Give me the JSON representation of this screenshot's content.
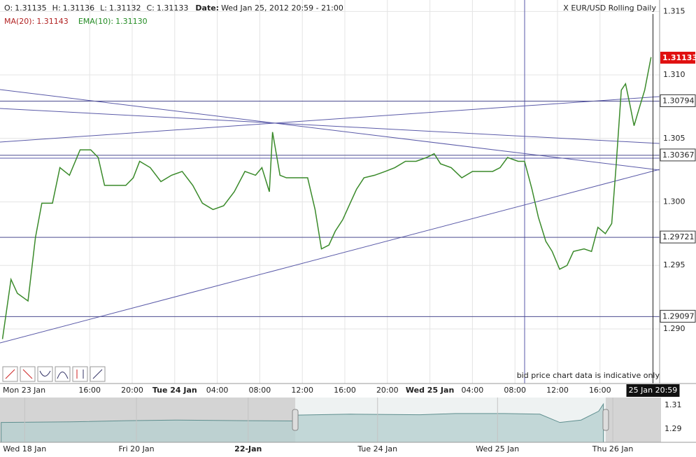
{
  "header": {
    "ohlc": [
      {
        "label": "O:",
        "value": "1.31135"
      },
      {
        "label": "H:",
        "value": "1.31136"
      },
      {
        "label": "L:",
        "value": "1.31132"
      },
      {
        "label": "C:",
        "value": "1.31133"
      }
    ],
    "date_label": "Date:",
    "date": "Wed Jan 25, 2012 20:59 - 21:00",
    "indicators": [
      {
        "label": "MA(20):",
        "value": "1.31143",
        "color": "#b22222"
      },
      {
        "label": "EMA(10):",
        "value": "1.31130",
        "color": "#228b22"
      }
    ]
  },
  "footer_note": "bid price chart data is indicative only",
  "chart_data": [
    {
      "type": "line",
      "title": "X EUR/USD Rolling Daily",
      "x_start_label": "Mon 23 Jan",
      "xlim": [
        7.566,
        69.605
      ],
      "ylim": [
        1.2857,
        1.3159
      ],
      "xticks": [
        {
          "value": 16,
          "label": "16:00"
        },
        {
          "value": 20,
          "label": "20:00"
        },
        {
          "value": 24,
          "label": "Tue 24 Jan"
        },
        {
          "value": 28,
          "label": "04:00"
        },
        {
          "value": 32,
          "label": "08:00"
        },
        {
          "value": 36,
          "label": "12:00"
        },
        {
          "value": 40,
          "label": "16:00"
        },
        {
          "value": 44,
          "label": "20:00"
        },
        {
          "value": 48,
          "label": "Wed 25 Jan"
        },
        {
          "value": 52,
          "label": "04:00"
        },
        {
          "value": 56,
          "label": "08:00"
        },
        {
          "value": 60,
          "label": "12:00"
        },
        {
          "value": 64,
          "label": "16:00"
        }
      ],
      "yticks": [
        {
          "value": 1.29,
          "label": "1.290"
        },
        1.295,
        {
          "value": 1.3,
          "label": "1.300"
        },
        1.305,
        {
          "value": 1.31,
          "label": "1.310"
        },
        1.315
      ],
      "grid": true,
      "cursor": {
        "value": 68.98,
        "label": "25 Jan 20:59"
      },
      "levels": [
        1.30794,
        1.30367,
        1.29721,
        1.29097
      ],
      "current_price": 1.31133,
      "series": [
        {
          "color": "#3a8a2a",
          "x": [
            7.8,
            8.6,
            9.2,
            10.2,
            10.9,
            11.5,
            12.5,
            13.2,
            14.1,
            15.1,
            16.1,
            16.8,
            17.4,
            18.4,
            19.4,
            20.1,
            20.7,
            21.7,
            22.7,
            23.7,
            24.7,
            25.7,
            26.6,
            27.6,
            28.6,
            29.6,
            30.6,
            31.6,
            32.2,
            32.9,
            33.2,
            33.9,
            34.5,
            35.5,
            36.5,
            37.2,
            37.8,
            38.5,
            39.1,
            39.8,
            40.5,
            41.1,
            41.8,
            42.8,
            43.8,
            44.7,
            45.7,
            46.7,
            47.7,
            48.4,
            49.0,
            50.0,
            51.0,
            52.0,
            52.9,
            53.9,
            54.6,
            55.3,
            56.3,
            56.9,
            57.6,
            58.2,
            58.9,
            59.5,
            60.2,
            60.9,
            61.5,
            62.5,
            63.2,
            63.8,
            64.5,
            65.1,
            65.5,
            66.0,
            66.4,
            66.8,
            67.2,
            67.8,
            68.2,
            68.8
          ],
          "values": [
            1.2892,
            1.2939,
            1.2928,
            1.2922,
            1.2972,
            1.2999,
            1.2999,
            1.3027,
            1.3021,
            1.3041,
            1.3041,
            1.3035,
            1.3013,
            1.3013,
            1.3013,
            1.3019,
            1.3032,
            1.3027,
            1.3016,
            1.3021,
            1.3024,
            1.3013,
            1.2999,
            1.2994,
            1.2997,
            1.3008,
            1.3024,
            1.3021,
            1.3027,
            1.3008,
            1.3055,
            1.3021,
            1.3019,
            1.3019,
            1.3019,
            1.2994,
            1.2963,
            1.2966,
            1.2977,
            1.2986,
            1.2999,
            1.301,
            1.3019,
            1.3021,
            1.3024,
            1.3027,
            1.3032,
            1.3032,
            1.3035,
            1.3038,
            1.303,
            1.3027,
            1.3019,
            1.3024,
            1.3024,
            1.3024,
            1.3027,
            1.3035,
            1.3032,
            1.3032,
            1.301,
            1.2988,
            1.2969,
            1.2961,
            1.2947,
            1.295,
            1.2961,
            1.2963,
            1.2961,
            1.298,
            1.2975,
            1.2983,
            1.3027,
            1.3088,
            1.3093,
            1.3077,
            1.306,
            1.3077,
            1.3088,
            1.3114
          ]
        }
      ]
    },
    {
      "type": "area",
      "xlim": [
        -0.21,
        5.41
      ],
      "ylim": [
        1.2788,
        1.3165
      ],
      "xticks": [
        {
          "value": 0,
          "label": "Wed 18 Jan"
        },
        {
          "value": 0.95,
          "label": "Fri 20 Jan"
        },
        {
          "value": 1.9,
          "label": "22-Jan"
        },
        {
          "value": 3.0,
          "label": "Tue 24 Jan"
        },
        {
          "value": 4.02,
          "label": "Wed 25 Jan"
        },
        {
          "value": 5.0,
          "label": "Thu 26 Jan"
        }
      ],
      "yticks": [
        {
          "value": 1.29,
          "label": "1.29"
        },
        {
          "value": 1.31,
          "label": "1.31"
        }
      ],
      "selection": [
        2.3,
        4.94
      ],
      "series": [
        {
          "color": "#5f8f8f",
          "x": [
            -0.2,
            0.39,
            0.86,
            1.28,
            1.88,
            2.28,
            2.32,
            2.77,
            3.36,
            3.66,
            4.08,
            4.38,
            4.55,
            4.73,
            4.88,
            4.92
          ],
          "values": [
            1.2955,
            1.296,
            1.297,
            1.2975,
            1.297,
            1.2968,
            1.3017,
            1.3025,
            1.302,
            1.303,
            1.303,
            1.3025,
            1.2955,
            1.2975,
            1.305,
            1.311
          ]
        }
      ]
    }
  ]
}
